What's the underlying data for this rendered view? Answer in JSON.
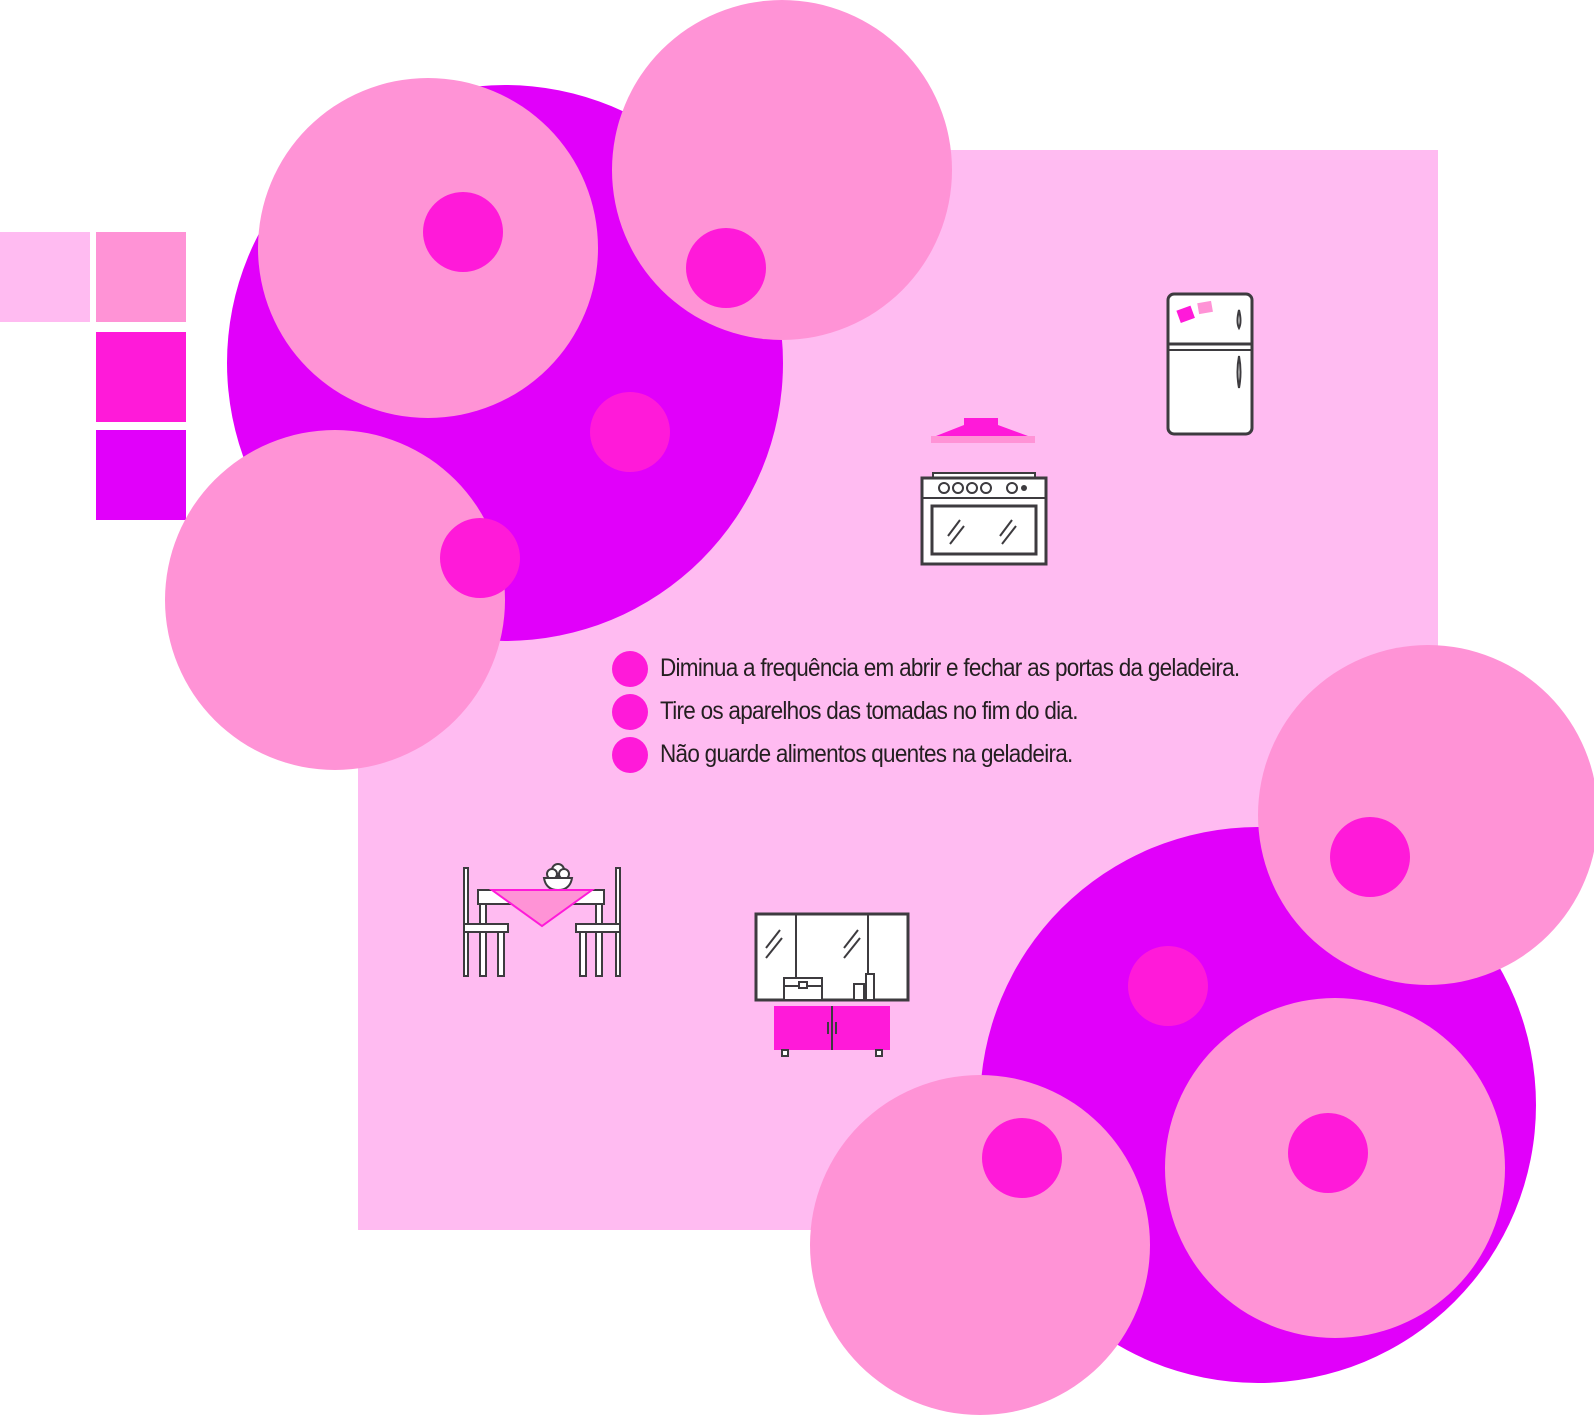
{
  "colors": {
    "light_pink": "#ffbbf1",
    "medium_pink": "#ff93d6",
    "hot_pink": "#ff1ad9",
    "magenta": "#e100fa",
    "icon_stroke": "#3d3b3f",
    "text": "#231f20"
  },
  "swatches": [
    "light_pink",
    "medium_pink",
    "hot_pink",
    "magenta"
  ],
  "tips": [
    {
      "text": "Diminua a frequência em abrir e fechar as portas da geladeira."
    },
    {
      "text": "Tire os aparelhos das tomadas no fim do dia."
    },
    {
      "text": "Não guarde alimentos quentes na geladeira."
    }
  ],
  "icons": [
    "refrigerator-icon",
    "range-hood-icon",
    "stove-oven-icon",
    "dining-table-icon",
    "kitchen-cabinet-icon"
  ]
}
